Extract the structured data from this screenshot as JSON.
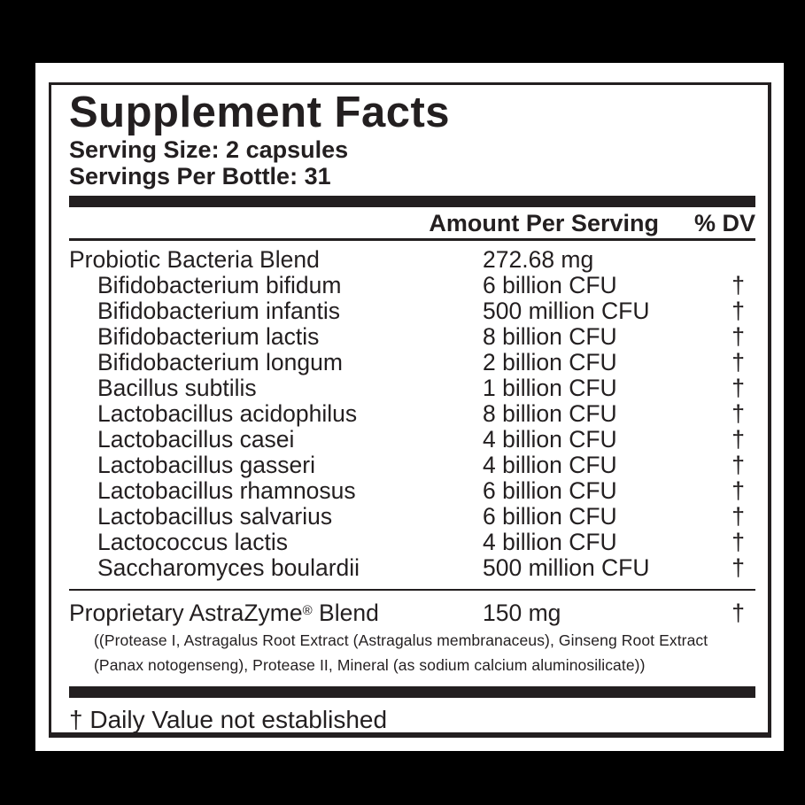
{
  "label": {
    "title": "Supplement Facts",
    "serving_size": "Serving Size: 2 capsules",
    "servings_per_bottle": "Servings Per Bottle: 31",
    "header": {
      "amount": "Amount Per Serving",
      "dv": "% DV"
    },
    "rows": [
      {
        "name": "Probiotic Bacteria Blend",
        "amount": "272.68 mg",
        "dv": "",
        "indent": false
      },
      {
        "name": "Bifidobacterium bifidum",
        "amount": "6 billion CFU",
        "dv": "†",
        "indent": true
      },
      {
        "name": "Bifidobacterium infantis",
        "amount": "500 million CFU",
        "dv": "†",
        "indent": true
      },
      {
        "name": "Bifidobacterium lactis",
        "amount": "8 billion CFU",
        "dv": "†",
        "indent": true
      },
      {
        "name": "Bifidobacterium longum",
        "amount": "2 billion CFU",
        "dv": "†",
        "indent": true
      },
      {
        "name": "Bacillus subtilis",
        "amount": "1 billion CFU",
        "dv": "†",
        "indent": true
      },
      {
        "name": "Lactobacillus acidophilus",
        "amount": "8 billion CFU",
        "dv": "†",
        "indent": true
      },
      {
        "name": "Lactobacillus casei",
        "amount": "4 billion CFU",
        "dv": "†",
        "indent": true
      },
      {
        "name": "Lactobacillus gasseri",
        "amount": "4 billion CFU",
        "dv": "†",
        "indent": true
      },
      {
        "name": "Lactobacillus rhamnosus",
        "amount": "6 billion CFU",
        "dv": "†",
        "indent": true
      },
      {
        "name": "Lactobacillus salvarius",
        "amount": "6 billion CFU",
        "dv": "†",
        "indent": true
      },
      {
        "name": "Lactococcus lactis",
        "amount": "4 billion CFU",
        "dv": "†",
        "indent": true
      },
      {
        "name": "Saccharomyces boulardii",
        "amount": "500 million CFU",
        "dv": "†",
        "indent": true
      }
    ],
    "proprietary": {
      "name_pre": "Proprietary AstraZyme",
      "reg": "®",
      "name_post": " Blend",
      "amount": "150 mg",
      "dv": "†",
      "note_line1": "((Protease I, Astragalus Root Extract (Astragalus membranaceus), Ginseng Root Extract",
      "note_line2": "(Panax notogenseng), Protease II, Mineral (as sodium calcium aluminosilicate))"
    },
    "footnote": "† Daily Value not established"
  },
  "colors": {
    "ink": "#231f20",
    "panel": "#ffffff",
    "background": "#000000"
  }
}
